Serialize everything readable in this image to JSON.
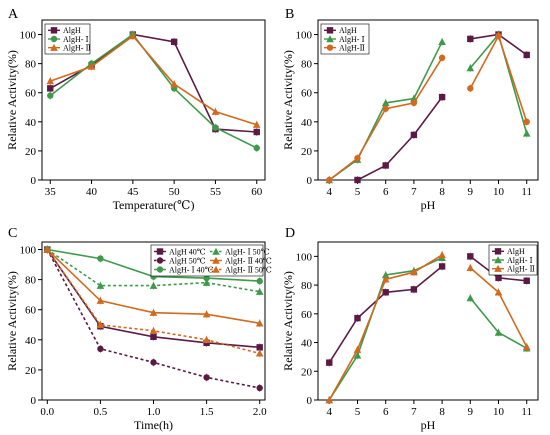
{
  "chart_data": [
    {
      "panel": "A",
      "type": "line",
      "xlabel": "Temperature(℃)",
      "ylabel": "Relative Activity(%)",
      "x": [
        35,
        40,
        45,
        50,
        55,
        60
      ],
      "x_ticks": [
        35,
        40,
        45,
        50,
        55,
        60
      ],
      "y_ticks": [
        0,
        20,
        40,
        60,
        80,
        100
      ],
      "xlim": [
        34,
        61
      ],
      "ylim": [
        0,
        110
      ],
      "legend_position": "top-left",
      "series": [
        {
          "name": "AlgH",
          "color": "#5b1a45",
          "marker": "square",
          "line": "solid",
          "values": [
            63,
            79,
            100,
            95,
            35,
            33
          ]
        },
        {
          "name": "AlgH- Ⅰ",
          "color": "#3e9a4a",
          "marker": "circle",
          "line": "solid",
          "values": [
            58,
            80,
            100,
            63,
            36,
            22
          ]
        },
        {
          "name": "AlgH- Ⅱ",
          "color": "#d2691e",
          "marker": "triangle",
          "line": "solid",
          "values": [
            68,
            78,
            99,
            66,
            47,
            38
          ]
        }
      ]
    },
    {
      "panel": "B",
      "type": "line",
      "xlabel": "pH",
      "ylabel": "Relative Activity(%)",
      "x_ticks": [
        4,
        5,
        6,
        7,
        8,
        9,
        10,
        11
      ],
      "y_ticks": [
        0,
        20,
        40,
        60,
        80,
        100
      ],
      "xlim": [
        3.6,
        11.4
      ],
      "ylim": [
        0,
        110
      ],
      "legend_position": "top-left",
      "series": [
        {
          "name": "AlgH",
          "color": "#5b1a45",
          "marker": "square",
          "line": "solid",
          "segments": [
            {
              "x": [
                5,
                6,
                7,
                8
              ],
              "values": [
                0,
                10,
                31,
                57
              ]
            },
            {
              "x": [
                9,
                10,
                11
              ],
              "values": [
                97,
                100,
                86
              ]
            }
          ]
        },
        {
          "name": "AlgH- Ⅰ",
          "color": "#3e9a4a",
          "marker": "triangle",
          "line": "solid",
          "segments": [
            {
              "x": [
                4,
                5,
                6,
                7,
                8
              ],
              "values": [
                0,
                14,
                53,
                56,
                95
              ]
            },
            {
              "x": [
                9,
                10,
                11
              ],
              "values": [
                77,
                100,
                32
              ]
            }
          ]
        },
        {
          "name": "AlgH-Ⅱ",
          "color": "#d2691e",
          "marker": "circle",
          "line": "solid",
          "segments": [
            {
              "x": [
                4,
                5,
                6,
                7,
                8
              ],
              "values": [
                0,
                15,
                49,
                53,
                84
              ]
            },
            {
              "x": [
                9,
                10,
                11
              ],
              "values": [
                63,
                99,
                40
              ]
            }
          ]
        }
      ]
    },
    {
      "panel": "C",
      "type": "line",
      "xlabel": "Time(h)",
      "ylabel": "Relative Activity(%)",
      "x": [
        0,
        0.5,
        1.0,
        1.5,
        2.0
      ],
      "x_ticks": [
        "0.0",
        "0.5",
        "1.0",
        "1.5",
        "2.0"
      ],
      "y_ticks": [
        0,
        20,
        40,
        60,
        80,
        100
      ],
      "xlim": [
        -0.05,
        2.05
      ],
      "ylim": [
        0,
        105
      ],
      "legend_position": "top-right",
      "series": [
        {
          "name": "AlgH  40℃",
          "color": "#5b1a45",
          "marker": "square",
          "line": "solid",
          "values": [
            100,
            49,
            42,
            38,
            35
          ]
        },
        {
          "name": "AlgH  50℃",
          "color": "#5b1a45",
          "marker": "circle",
          "line": "dashed",
          "values": [
            100,
            34,
            25,
            15,
            8
          ]
        },
        {
          "name": "AlgH- Ⅰ 40℃",
          "color": "#3e9a4a",
          "marker": "circle",
          "line": "solid",
          "values": [
            100,
            94,
            82,
            81,
            79
          ]
        },
        {
          "name": "AlgH- Ⅰ 50℃",
          "color": "#3e9a4a",
          "marker": "triangle",
          "line": "dashed",
          "values": [
            100,
            76,
            76,
            78,
            72
          ]
        },
        {
          "name": "AlgH- Ⅱ 40℃",
          "color": "#d2691e",
          "marker": "triangle",
          "line": "solid",
          "values": [
            100,
            66,
            58,
            57,
            51
          ]
        },
        {
          "name": "AlgH- Ⅱ 50℃",
          "color": "#d2691e",
          "marker": "triangle",
          "line": "dashed",
          "values": [
            100,
            50,
            46,
            40,
            31
          ]
        }
      ]
    },
    {
      "panel": "D",
      "type": "line",
      "xlabel": "pH",
      "ylabel": "Relative Activity(%)",
      "x_ticks": [
        4,
        5,
        6,
        7,
        8,
        9,
        10,
        11
      ],
      "y_ticks": [
        0,
        20,
        40,
        60,
        80,
        100
      ],
      "xlim": [
        3.6,
        11.4
      ],
      "ylim": [
        0,
        110
      ],
      "legend_position": "top-right",
      "series": [
        {
          "name": "AlgH",
          "color": "#5b1a45",
          "marker": "square",
          "line": "solid",
          "segments": [
            {
              "x": [
                4,
                5,
                6,
                7,
                8
              ],
              "values": [
                26,
                57,
                75,
                77,
                93
              ]
            },
            {
              "x": [
                9,
                10,
                11
              ],
              "values": [
                100,
                85,
                83
              ]
            }
          ]
        },
        {
          "name": "AlgH- Ⅰ",
          "color": "#3e9a4a",
          "marker": "triangle",
          "line": "solid",
          "segments": [
            {
              "x": [
                4,
                5,
                6,
                7,
                8
              ],
              "values": [
                0,
                31,
                87,
                90,
                99
              ]
            },
            {
              "x": [
                9,
                10,
                11
              ],
              "values": [
                71,
                47,
                36
              ]
            }
          ]
        },
        {
          "name": "AlgH- Ⅱ",
          "color": "#d2691e",
          "marker": "triangle",
          "line": "solid",
          "segments": [
            {
              "x": [
                4,
                5,
                6,
                7,
                8
              ],
              "values": [
                0,
                35,
                84,
                89,
                101
              ]
            },
            {
              "x": [
                9,
                10,
                11
              ],
              "values": [
                92,
                75,
                37
              ]
            }
          ]
        }
      ]
    }
  ]
}
